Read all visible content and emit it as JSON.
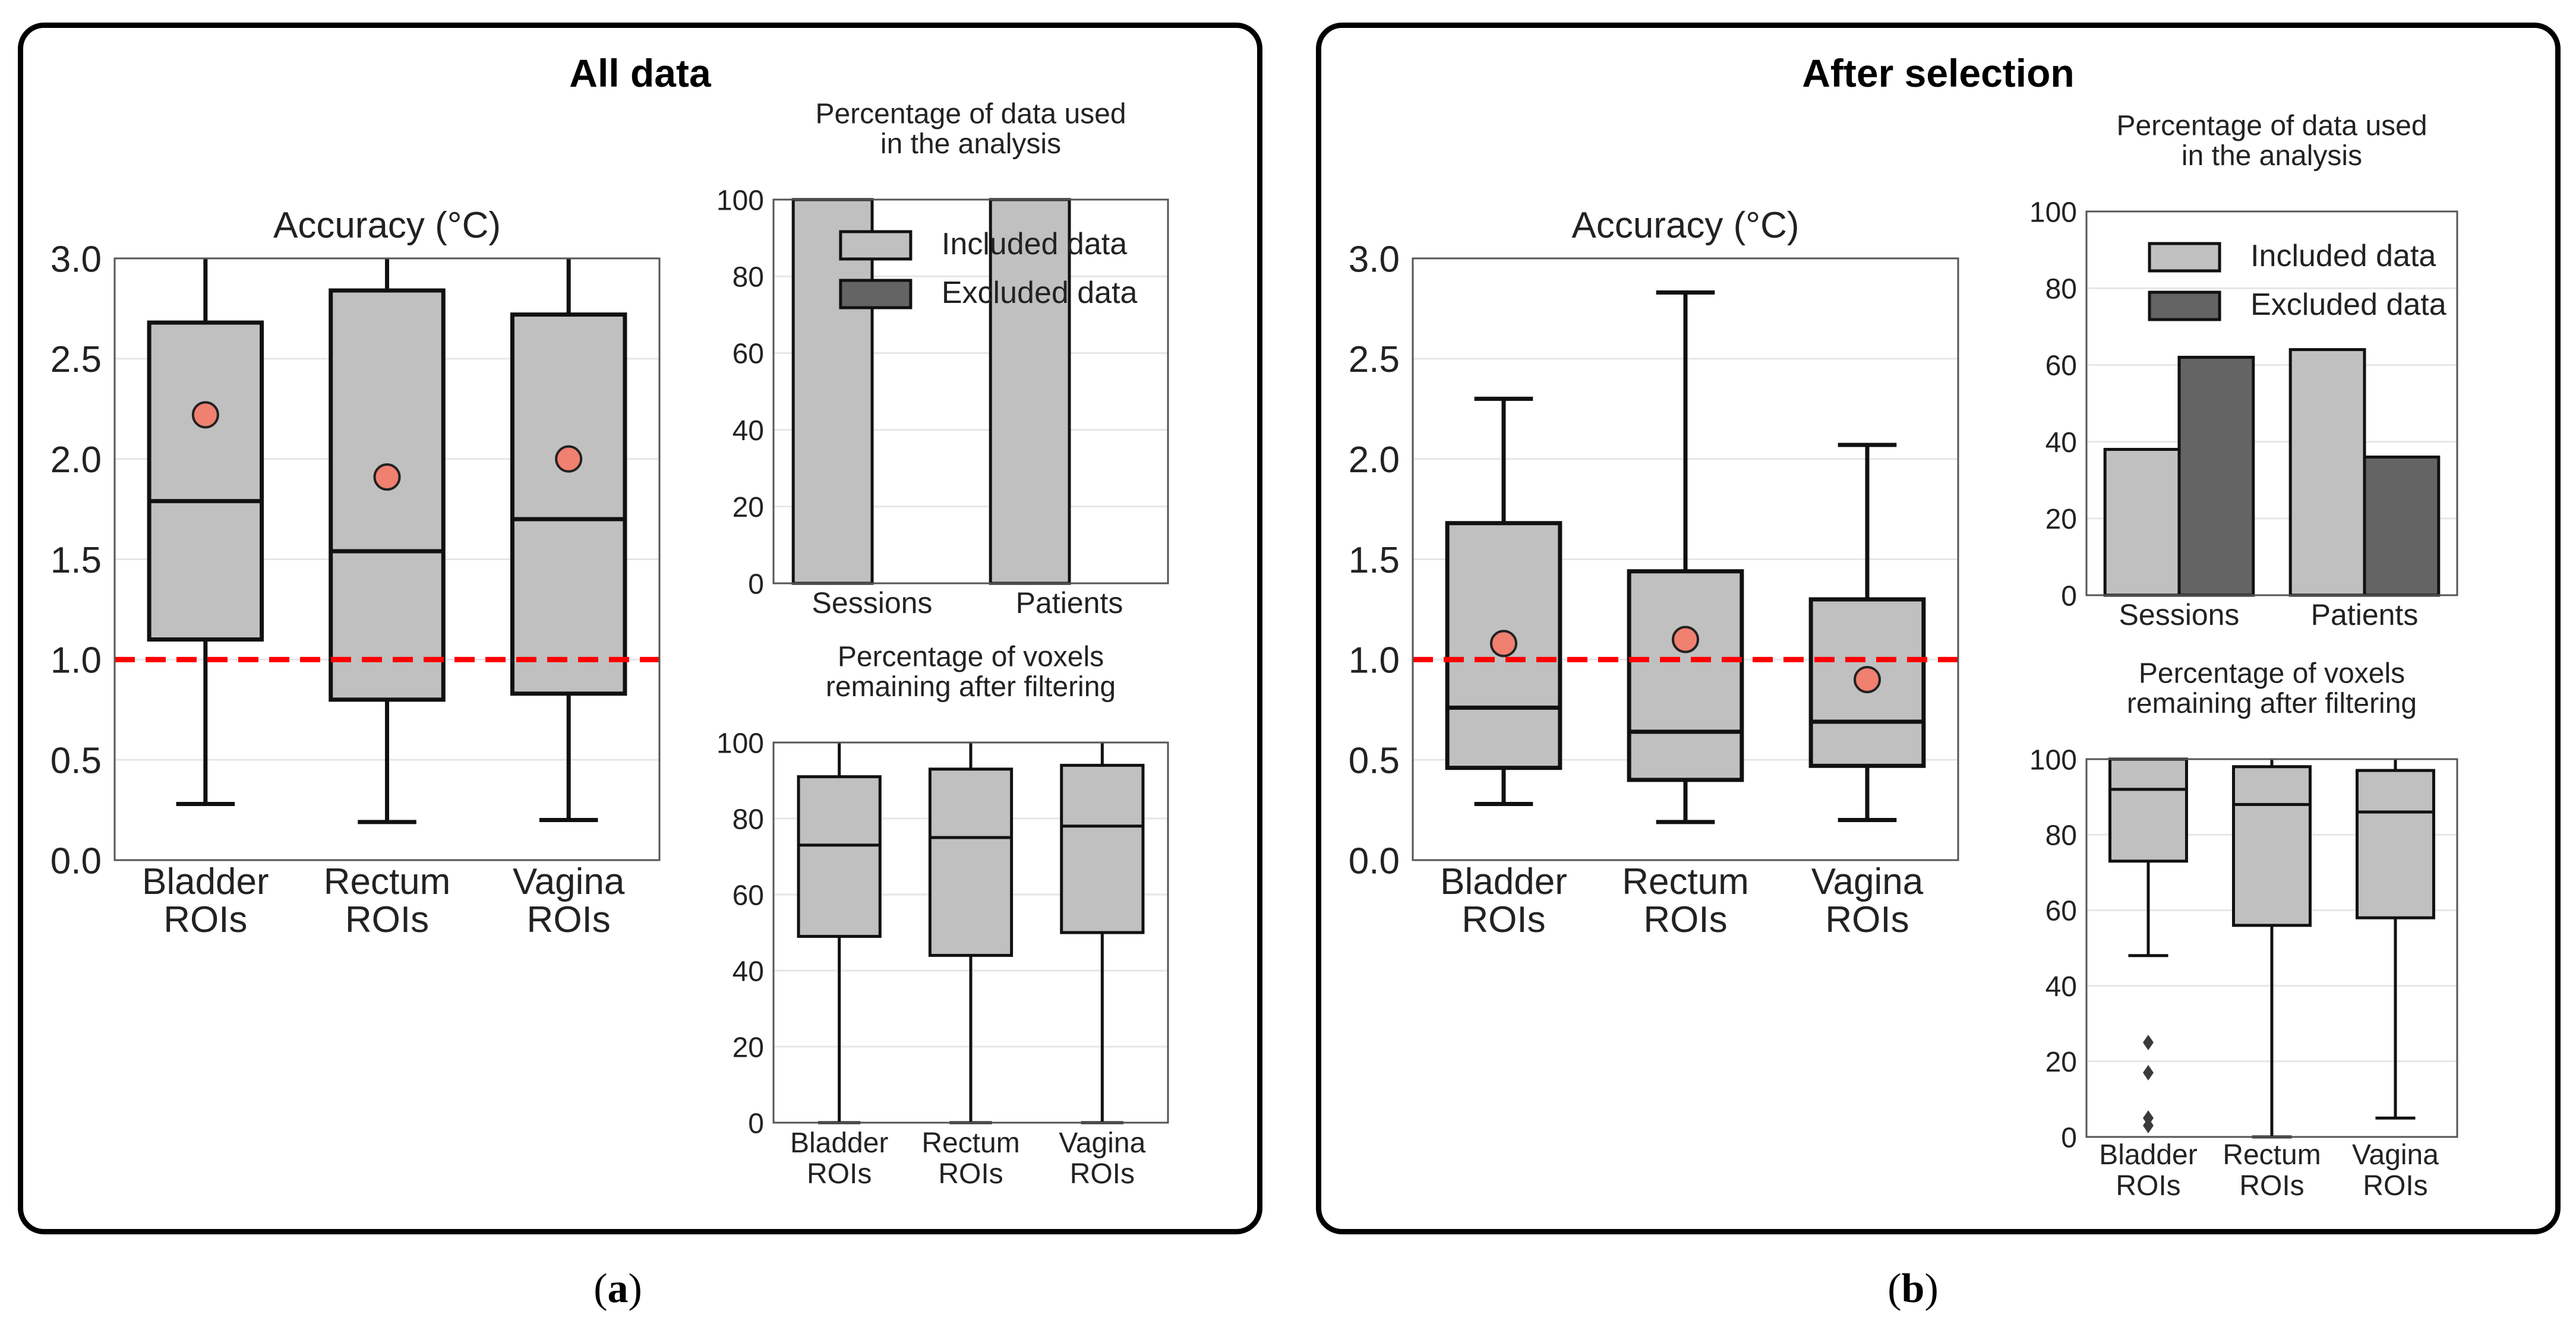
{
  "panels": {
    "a": {
      "title": "All data",
      "caption_label": "a"
    },
    "b": {
      "title": "After selection",
      "caption_label": "b"
    }
  },
  "colors": {
    "box": "#c0c0c0",
    "included": "#c0c0c0",
    "excluded": "#646464",
    "mean_marker": "#f08070",
    "threshold": "#ff0000",
    "grid": "#e6e6e6"
  },
  "chart_data": [
    {
      "id": "a-accuracy",
      "type": "box",
      "title": "Accuracy (°C)",
      "categories": [
        "Bladder\nROIs",
        "Rectum\nROIs",
        "Vagina\nROIs"
      ],
      "ylim": [
        0,
        3
      ],
      "yticks": [
        0.0,
        0.5,
        1.0,
        1.5,
        2.0,
        2.5,
        3.0
      ],
      "ytick_labels": [
        "0.0",
        "0.5",
        "1.0",
        "1.5",
        "2.0",
        "2.5",
        "3.0"
      ],
      "threshold": 1.0,
      "boxes": [
        {
          "whisker_low": 0.28,
          "q1": 1.1,
          "median": 1.79,
          "q3": 2.68,
          "whisker_high": 3.0,
          "mean": 2.22
        },
        {
          "whisker_low": 0.19,
          "q1": 0.8,
          "median": 1.54,
          "q3": 2.84,
          "whisker_high": 3.0,
          "mean": 1.91
        },
        {
          "whisker_low": 0.2,
          "q1": 0.83,
          "median": 1.7,
          "q3": 2.72,
          "whisker_high": 3.0,
          "mean": 2.0
        }
      ]
    },
    {
      "id": "a-data-used",
      "type": "bar",
      "title": "Percentage of data used\nin the analysis",
      "categories": [
        "Sessions",
        "Patients"
      ],
      "ylim": [
        0,
        100
      ],
      "yticks": [
        0,
        20,
        40,
        60,
        80,
        100
      ],
      "ytick_labels": [
        "0",
        "20",
        "40",
        "60",
        "80",
        "100"
      ],
      "series": [
        {
          "name": "Included data",
          "values": [
            100,
            100
          ]
        },
        {
          "name": "Excluded data",
          "values": [
            0,
            0
          ]
        }
      ],
      "legend": "top-right"
    },
    {
      "id": "a-voxels",
      "type": "box",
      "title": "Percentage of voxels\nremaining after filtering",
      "categories": [
        "Bladder\nROIs",
        "Rectum\nROIs",
        "Vagina\nROIs"
      ],
      "ylim": [
        0,
        100
      ],
      "yticks": [
        0,
        20,
        40,
        60,
        80,
        100
      ],
      "ytick_labels": [
        "0",
        "20",
        "40",
        "60",
        "80",
        "100"
      ],
      "boxes": [
        {
          "whisker_low": 0,
          "q1": 49,
          "median": 73,
          "q3": 91,
          "whisker_high": 100
        },
        {
          "whisker_low": 0,
          "q1": 44,
          "median": 75,
          "q3": 93,
          "whisker_high": 100
        },
        {
          "whisker_low": 0,
          "q1": 50,
          "median": 78,
          "q3": 94,
          "whisker_high": 100
        }
      ]
    },
    {
      "id": "b-accuracy",
      "type": "box",
      "title": "Accuracy (°C)",
      "categories": [
        "Bladder\nROIs",
        "Rectum\nROIs",
        "Vagina\nROIs"
      ],
      "ylim": [
        0,
        3
      ],
      "yticks": [
        0.0,
        0.5,
        1.0,
        1.5,
        2.0,
        2.5,
        3.0
      ],
      "ytick_labels": [
        "0.0",
        "0.5",
        "1.0",
        "1.5",
        "2.0",
        "2.5",
        "3.0"
      ],
      "threshold": 1.0,
      "boxes": [
        {
          "whisker_low": 0.28,
          "q1": 0.46,
          "median": 0.76,
          "q3": 1.68,
          "whisker_high": 2.3,
          "mean": 1.08
        },
        {
          "whisker_low": 0.19,
          "q1": 0.4,
          "median": 0.64,
          "q3": 1.44,
          "whisker_high": 2.83,
          "mean": 1.1
        },
        {
          "whisker_low": 0.2,
          "q1": 0.47,
          "median": 0.69,
          "q3": 1.3,
          "whisker_high": 2.07,
          "mean": 0.9
        }
      ]
    },
    {
      "id": "b-data-used",
      "type": "bar",
      "title": "Percentage of data used\nin the analysis",
      "categories": [
        "Sessions",
        "Patients"
      ],
      "ylim": [
        0,
        100
      ],
      "yticks": [
        0,
        20,
        40,
        60,
        80,
        100
      ],
      "ytick_labels": [
        "0",
        "20",
        "40",
        "60",
        "80",
        "100"
      ],
      "series": [
        {
          "name": "Included data",
          "values": [
            38,
            64
          ]
        },
        {
          "name": "Excluded data",
          "values": [
            62,
            36
          ]
        }
      ],
      "legend": "top-right"
    },
    {
      "id": "b-voxels",
      "type": "box",
      "title": "Percentage of voxels\nremaining after filtering",
      "categories": [
        "Bladder\nROIs",
        "Rectum\nROIs",
        "Vagina\nROIs"
      ],
      "ylim": [
        0,
        100
      ],
      "yticks": [
        0,
        20,
        40,
        60,
        80,
        100
      ],
      "ytick_labels": [
        "0",
        "20",
        "40",
        "60",
        "80",
        "100"
      ],
      "boxes": [
        {
          "whisker_low": 48,
          "q1": 73,
          "median": 92,
          "q3": 100,
          "whisker_high": 100,
          "outliers": [
            25,
            17,
            5,
            3
          ]
        },
        {
          "whisker_low": 0,
          "q1": 56,
          "median": 88,
          "q3": 98,
          "whisker_high": 100
        },
        {
          "whisker_low": 5,
          "q1": 58,
          "median": 86,
          "q3": 97,
          "whisker_high": 100
        }
      ]
    }
  ]
}
